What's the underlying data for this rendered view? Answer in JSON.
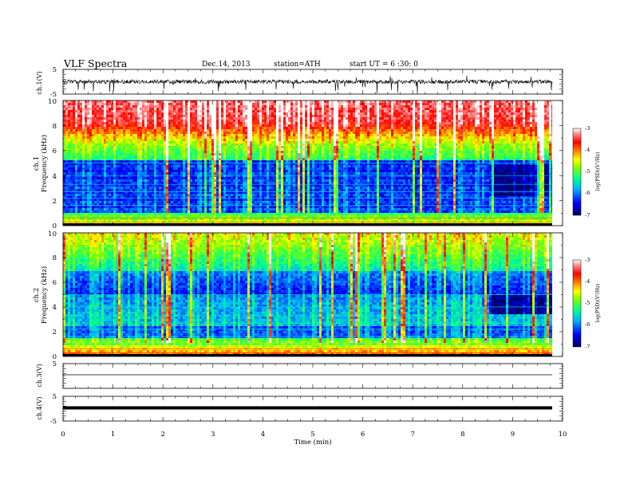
{
  "header": {
    "title": "VLF  Spectra",
    "date": "Dec.14, 2013",
    "station": "station=ATH",
    "start": "start  UT  =    6  :30: 0"
  },
  "chart_data": [
    {
      "type": "line",
      "panel": "ch1-waveform",
      "ylabel": "ch.1(V)",
      "ylim": [
        -5,
        5
      ],
      "yticks": [
        5,
        -5
      ],
      "xlim": [
        0,
        10
      ],
      "series": [
        {
          "values_description_level": 0
        }
      ]
    },
    {
      "type": "heatmap",
      "panel": "ch1-spectrogram",
      "ylabel_top": "ch.1",
      "ylabel": "Frequency  (kHz)",
      "ylim": [
        0,
        10
      ],
      "yticks": [
        0,
        2,
        4,
        6,
        8,
        10
      ],
      "xlim": [
        0,
        9.8
      ],
      "colorbar": {
        "label": "log(PSD)(V²/Hz)",
        "range": [
          -7,
          -3
        ],
        "ticks": [
          -3,
          -4,
          -5,
          -6,
          -7
        ]
      }
    },
    {
      "type": "heatmap",
      "panel": "ch2-spectrogram",
      "ylabel_top": "ch.2",
      "ylabel": "Frequency  (kHz)",
      "ylim": [
        0,
        10
      ],
      "yticks": [
        0,
        2,
        4,
        6,
        8,
        10
      ],
      "xlim": [
        0,
        9.8
      ],
      "colorbar": {
        "label": "log(PSD)(V²/Hz)",
        "range": [
          -7,
          -3
        ],
        "ticks": [
          -3,
          -4,
          -5,
          -6,
          -7
        ]
      }
    },
    {
      "type": "line",
      "panel": "ch3-waveform",
      "ylabel": "ch.3(V)",
      "ylim": [
        -5,
        5
      ],
      "yticks": [
        5
      ],
      "xlim": [
        0,
        10
      ]
    },
    {
      "type": "line",
      "panel": "ch4-waveform",
      "ylabel": "ch.4(V)",
      "ylim": [
        -5,
        5
      ],
      "yticks": [
        5,
        -5
      ],
      "xlim": [
        0,
        10
      ],
      "xlabel": "Time  (min)",
      "xticks": [
        0,
        1,
        2,
        3,
        4,
        5,
        6,
        7,
        8,
        9,
        10
      ]
    }
  ],
  "colors": {
    "spectrum": [
      "#000080",
      "#0000ff",
      "#00c0ff",
      "#00ff80",
      "#80ff00",
      "#ffff00",
      "#ff8000",
      "#ff0000",
      "#ff8080",
      "#ffffff"
    ]
  }
}
